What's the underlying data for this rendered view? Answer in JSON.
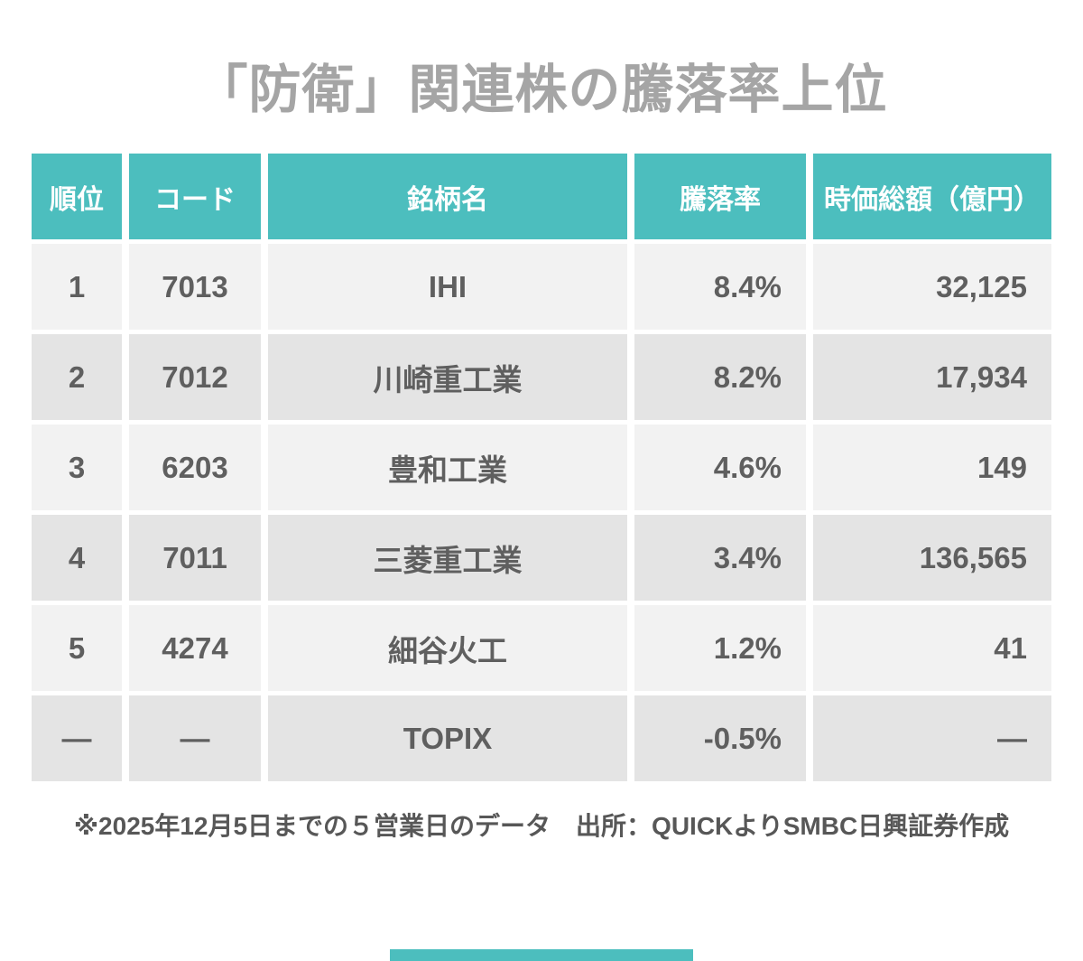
{
  "title": "「防衛」関連株の騰落率上位",
  "table": {
    "headers": [
      "順位",
      "コード",
      "銘柄名",
      "騰落率",
      "時価総額（億円）"
    ],
    "rows": [
      {
        "rank": "1",
        "code": "7013",
        "name": "IHI",
        "change": "8.4%",
        "market_cap": "32,125"
      },
      {
        "rank": "2",
        "code": "7012",
        "name": "川崎重工業",
        "change": "8.2%",
        "market_cap": "17,934"
      },
      {
        "rank": "3",
        "code": "6203",
        "name": "豊和工業",
        "change": "4.6%",
        "market_cap": "149"
      },
      {
        "rank": "4",
        "code": "7011",
        "name": "三菱重工業",
        "change": "3.4%",
        "market_cap": "136,565"
      },
      {
        "rank": "5",
        "code": "4274",
        "name": "細谷火工",
        "change": "1.2%",
        "market_cap": "41"
      },
      {
        "rank": "—",
        "code": "—",
        "name": "TOPIX",
        "change": "-0.5%",
        "market_cap": "—"
      }
    ]
  },
  "footnote": "※2025年12月5日までの５営業日のデータ　出所：QUICKよりSMBC日興証券作成",
  "colors": {
    "accent": "#4CBEBE",
    "row_light": "#F2F2F2",
    "row_dark": "#E4E4E4",
    "title_gray": "#A5A5A5",
    "cell_text": "#5F5F5F",
    "header_text": "#FFFFFF",
    "footnote_text": "#575757"
  }
}
